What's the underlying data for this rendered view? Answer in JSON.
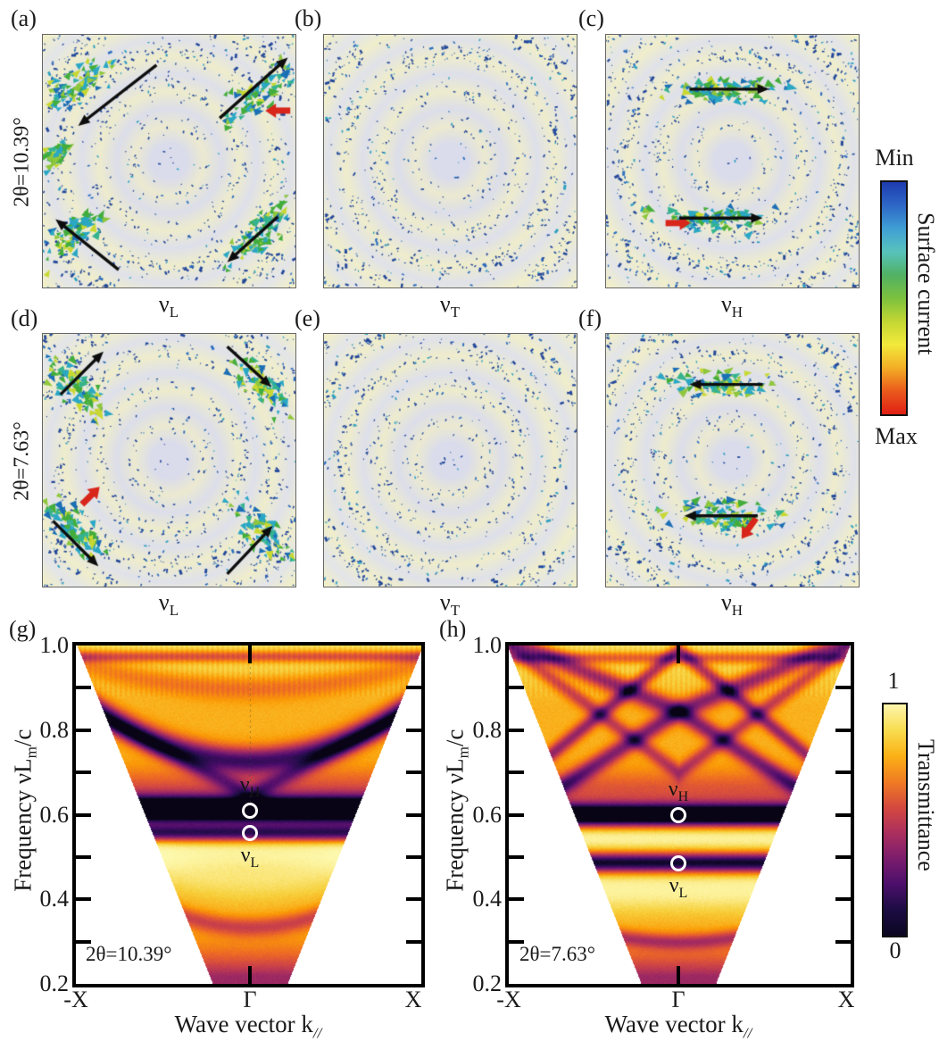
{
  "surface_rows": [
    {
      "angle_label": "2θ=10.39°",
      "panels": [
        {
          "letter": "(a)",
          "mode": "ν",
          "mode_sub": "L",
          "decor": {
            "clusters": [
              {
                "x": 0.13,
                "y": 0.2,
                "angle": -40,
                "len": 0.34,
                "wid": 0.13
              },
              {
                "x": 0.86,
                "y": 0.22,
                "angle": -40,
                "len": 0.32,
                "wid": 0.13
              },
              {
                "x": 0.13,
                "y": 0.79,
                "angle": -40,
                "len": 0.33,
                "wid": 0.13
              },
              {
                "x": 0.86,
                "y": 0.78,
                "angle": -40,
                "len": 0.32,
                "wid": 0.12
              },
              {
                "x": 0.05,
                "y": 0.47,
                "angle": -40,
                "len": 0.12,
                "wid": 0.07
              }
            ],
            "arrows": [
              {
                "x1": 0.45,
                "y1": 0.12,
                "x2": 0.14,
                "y2": 0.36
              },
              {
                "x1": 0.7,
                "y1": 0.33,
                "x2": 0.97,
                "y2": 0.09
              },
              {
                "x1": 0.3,
                "y1": 0.93,
                "x2": 0.05,
                "y2": 0.73
              },
              {
                "x1": 0.93,
                "y1": 0.72,
                "x2": 0.73,
                "y2": 0.9
              }
            ],
            "red": [
              {
                "x": 0.93,
                "y": 0.3,
                "angle": 180
              }
            ]
          }
        },
        {
          "letter": "(b)",
          "mode": "ν",
          "mode_sub": "T",
          "decor": {
            "clusters": [],
            "arrows": [],
            "red": []
          }
        },
        {
          "letter": "(c)",
          "mode": "ν",
          "mode_sub": "H",
          "decor": {
            "clusters": [
              {
                "x": 0.46,
                "y": 0.22,
                "angle": 0,
                "len": 0.44,
                "wid": 0.1
              },
              {
                "x": 0.44,
                "y": 0.73,
                "angle": 0,
                "len": 0.46,
                "wid": 0.11
              }
            ],
            "arrows": [
              {
                "x1": 0.33,
                "y1": 0.215,
                "x2": 0.645,
                "y2": 0.215
              },
              {
                "x1": 0.29,
                "y1": 0.725,
                "x2": 0.62,
                "y2": 0.725
              }
            ],
            "red": [
              {
                "x": 0.285,
                "y": 0.745,
                "angle": 0
              }
            ]
          }
        }
      ]
    },
    {
      "angle_label": "2θ=7.63°",
      "panels": [
        {
          "letter": "(d)",
          "mode": "ν",
          "mode_sub": "L",
          "decor": {
            "clusters": [
              {
                "x": 0.13,
                "y": 0.21,
                "angle": 45,
                "len": 0.34,
                "wid": 0.13
              },
              {
                "x": 0.87,
                "y": 0.2,
                "angle": 45,
                "len": 0.32,
                "wid": 0.12
              },
              {
                "x": 0.12,
                "y": 0.77,
                "angle": 45,
                "len": 0.34,
                "wid": 0.13
              },
              {
                "x": 0.87,
                "y": 0.79,
                "angle": 45,
                "len": 0.32,
                "wid": 0.12
              }
            ],
            "arrows": [
              {
                "x1": 0.07,
                "y1": 0.24,
                "x2": 0.24,
                "y2": 0.07
              },
              {
                "x1": 0.73,
                "y1": 0.05,
                "x2": 0.905,
                "y2": 0.21
              },
              {
                "x1": 0.04,
                "y1": 0.74,
                "x2": 0.22,
                "y2": 0.92
              },
              {
                "x1": 0.73,
                "y1": 0.95,
                "x2": 0.91,
                "y2": 0.76
              }
            ],
            "red": [
              {
                "x": 0.19,
                "y": 0.64,
                "angle": -45
              }
            ]
          }
        },
        {
          "letter": "(e)",
          "mode": "ν",
          "mode_sub": "T",
          "decor": {
            "clusters": [],
            "arrows": [],
            "red": []
          }
        },
        {
          "letter": "(f)",
          "mode": "ν",
          "mode_sub": "H",
          "decor": {
            "clusters": [
              {
                "x": 0.44,
                "y": 0.2,
                "angle": 0,
                "len": 0.4,
                "wid": 0.1
              },
              {
                "x": 0.45,
                "y": 0.72,
                "angle": 0,
                "len": 0.46,
                "wid": 0.12
              }
            ],
            "arrows": [
              {
                "x1": 0.62,
                "y1": 0.2,
                "x2": 0.33,
                "y2": 0.2
              },
              {
                "x1": 0.6,
                "y1": 0.72,
                "x2": 0.31,
                "y2": 0.72
              }
            ],
            "red": [
              {
                "x": 0.565,
                "y": 0.77,
                "angle": 125
              }
            ]
          }
        }
      ]
    }
  ],
  "current_colorbar": {
    "min_label": "Min",
    "max_label": "Max",
    "title": "Surface current",
    "stops": [
      "#1e3cb0",
      "#2d67c6",
      "#3f9fd4",
      "#57c3bc",
      "#51b163",
      "#7cc13e",
      "#c3d633",
      "#f2e93b",
      "#f3ae25",
      "#ea5a1c",
      "#e01f14"
    ]
  },
  "transmittance_colorbar": {
    "top_label": "1",
    "bottom_label": "0",
    "title": "Transmittance",
    "stops": [
      "#fdf5ac",
      "#f8dd4f",
      "#fbb115",
      "#f07c23",
      "#d5493e",
      "#ab2f5e",
      "#7b1c6c",
      "#4b0f6b",
      "#1c0c43",
      "#0a0620"
    ]
  },
  "chart_data": [
    {
      "id": "g",
      "type": "heatmap",
      "letter": "(g)",
      "annotation": "2θ=10.39°",
      "ylabel": {
        "prefix": "Frequency νL",
        "sub": "m",
        "suffix": "/c"
      },
      "xlabel": {
        "prefix": "Wave vector k",
        "sub": "//"
      },
      "yticks": [
        "1.0",
        "0.8",
        "0.6",
        "0.4",
        "0.2"
      ],
      "xticks": [
        "-X",
        "Γ",
        "X"
      ],
      "ylim": [
        0.2,
        1.0
      ],
      "colormap": "inferno",
      "colorbar_range": [
        0,
        1
      ],
      "gamma_guide": true,
      "markers": [
        {
          "glyph": "ν",
          "sub": "H",
          "freq": 0.61
        },
        {
          "glyph": "ν",
          "sub": "L",
          "freq": 0.557
        }
      ],
      "bands": [
        {
          "shape": "h",
          "f0": 0.615,
          "a": 1.0,
          "w": 0.02
        },
        {
          "shape": "h",
          "f0": 0.557,
          "a": 0.5,
          "w": 0.013
        },
        {
          "shape": "h",
          "f0": 0.586,
          "a": 0.2,
          "w": 0.03
        },
        {
          "shape": "h",
          "f0": 0.66,
          "a": 0.2,
          "w": 0.035
        },
        {
          "shape": "h",
          "f0": 0.515,
          "a": -0.16,
          "w": 0.025
        },
        {
          "shape": "h",
          "f0": 0.975,
          "a": 0.3,
          "w": 0.01
        },
        {
          "shape": "arc",
          "f0": 0.728,
          "k": 0.155,
          "a": 0.55,
          "w": 0.022
        },
        {
          "shape": "arc",
          "f0": 0.9,
          "k": 0.06,
          "a": 0.16,
          "w": 0.02
        },
        {
          "shape": "diag",
          "f0": 0.648,
          "k": 0.21,
          "a": 0.3,
          "w": 0.016
        },
        {
          "shape": "diag",
          "f0": -0.05,
          "k": 1.0,
          "a": 0.3,
          "w": 0.014
        },
        {
          "shape": "diag",
          "f0": -0.145,
          "k": 1.0,
          "a": 0.22,
          "w": 0.013
        },
        {
          "shape": "arc",
          "f0": 0.335,
          "k": 0.17,
          "a": 0.25,
          "w": 0.016
        },
        {
          "shape": "arc",
          "f0": 0.45,
          "k": 0.1,
          "a": -0.12,
          "w": 0.035
        }
      ]
    },
    {
      "id": "h",
      "type": "heatmap",
      "letter": "(h)",
      "annotation": "2θ=7.63°",
      "ylabel": {
        "prefix": "Frequency νL",
        "sub": "m",
        "suffix": "/c"
      },
      "xlabel": {
        "prefix": "Wave vector k",
        "sub": "//"
      },
      "yticks": [
        "1.0",
        "0.8",
        "0.6",
        "0.4",
        "0.2"
      ],
      "xticks": [
        "-X",
        "Γ",
        "X"
      ],
      "ylim": [
        0.2,
        1.0
      ],
      "colormap": "inferno",
      "colorbar_range": [
        0,
        1
      ],
      "gamma_guide": false,
      "markers": [
        {
          "glyph": "ν",
          "sub": "H",
          "freq": 0.6
        },
        {
          "glyph": "ν",
          "sub": "L",
          "freq": 0.485
        }
      ],
      "bands": [
        {
          "shape": "h",
          "f0": 0.6,
          "a": 1.0,
          "w": 0.018
        },
        {
          "shape": "h",
          "f0": 0.487,
          "a": 0.72,
          "w": 0.016
        },
        {
          "shape": "h",
          "f0": 0.548,
          "a": -0.18,
          "w": 0.022
        },
        {
          "shape": "h",
          "f0": 0.425,
          "a": -0.18,
          "w": 0.035
        },
        {
          "shape": "h",
          "f0": 0.655,
          "a": 0.2,
          "w": 0.035
        },
        {
          "shape": "h",
          "f0": 0.972,
          "a": 0.26,
          "w": 0.01
        },
        {
          "shape": "diag",
          "f0": 0.845,
          "k": 0.17,
          "a": 0.42,
          "w": 0.017
        },
        {
          "shape": "diag",
          "f0": 0.845,
          "k": -0.26,
          "a": 0.42,
          "w": 0.017
        },
        {
          "shape": "diag",
          "f0": 0.99,
          "k": -0.33,
          "a": 0.38,
          "w": 0.015
        },
        {
          "shape": "diag",
          "f0": 0.7,
          "k": 0.3,
          "a": 0.28,
          "w": 0.015
        },
        {
          "shape": "diag",
          "f0": -0.06,
          "k": 1.0,
          "a": 0.25,
          "w": 0.014
        },
        {
          "shape": "arc",
          "f0": 0.3,
          "k": 0.1,
          "a": 0.28,
          "w": 0.013
        }
      ]
    }
  ]
}
